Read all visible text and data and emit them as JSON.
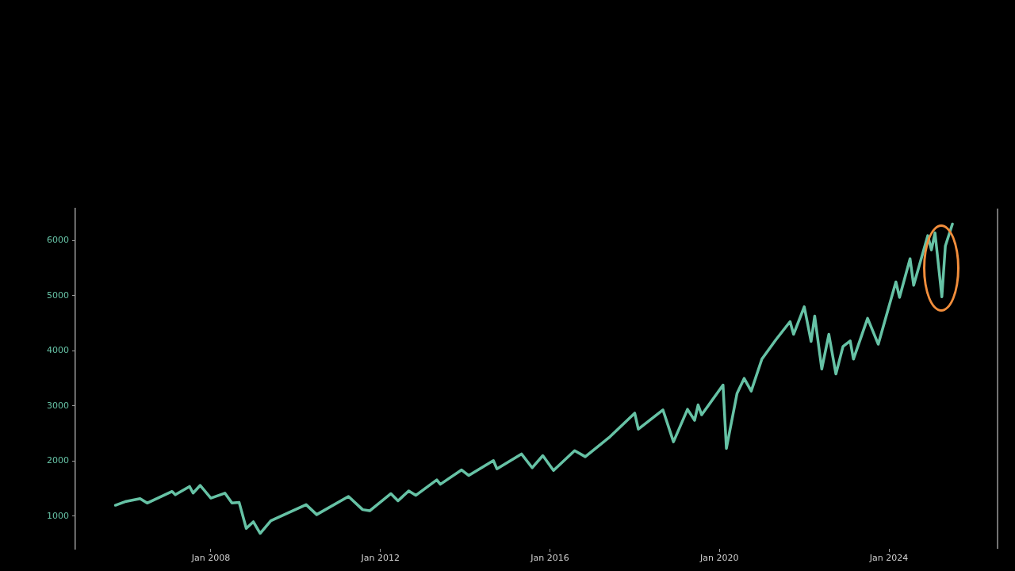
{
  "chart_data": {
    "type": "line",
    "x": [
      "2005-10",
      "2006-01",
      "2006-05",
      "2006-07",
      "2007-02",
      "2007-03",
      "2007-07",
      "2007-08",
      "2007-10",
      "2008-01",
      "2008-05",
      "2008-07",
      "2008-09",
      "2008-11",
      "2009-01",
      "2009-03",
      "2009-06",
      "2010-04",
      "2010-07",
      "2011-04",
      "2011-08",
      "2011-10",
      "2012-04",
      "2012-06",
      "2012-09",
      "2012-11",
      "2013-05",
      "2013-06",
      "2013-12",
      "2014-02",
      "2014-09",
      "2014-10",
      "2015-05",
      "2015-08",
      "2015-11",
      "2016-02",
      "2016-08",
      "2016-11",
      "2017-06",
      "2018-01",
      "2018-02",
      "2018-09",
      "2018-12",
      "2019-04",
      "2019-06",
      "2019-07",
      "2019-08",
      "2020-02",
      "2020-03",
      "2020-06",
      "2020-08",
      "2020-10",
      "2021-01",
      "2021-05",
      "2021-09",
      "2021-10",
      "2022-01",
      "2022-03",
      "2022-04",
      "2022-06",
      "2022-08",
      "2022-10",
      "2022-12",
      "2023-02",
      "2023-03",
      "2023-07",
      "2023-10",
      "2024-03",
      "2024-04",
      "2024-07",
      "2024-08",
      "2024-12",
      "2025-01",
      "2025-02",
      "2025-04",
      "2025-05",
      "2025-07"
    ],
    "series": [
      {
        "color": "#66c2a5",
        "values": [
          1200,
          1270,
          1320,
          1240,
          1450,
          1390,
          1540,
          1420,
          1560,
          1330,
          1420,
          1240,
          1250,
          780,
          900,
          690,
          920,
          1210,
          1030,
          1360,
          1120,
          1100,
          1410,
          1280,
          1460,
          1380,
          1660,
          1580,
          1840,
          1740,
          2010,
          1860,
          2130,
          1880,
          2100,
          1830,
          2190,
          2080,
          2440,
          2870,
          2580,
          2930,
          2350,
          2940,
          2740,
          3020,
          2840,
          3380,
          2230,
          3230,
          3500,
          3270,
          3850,
          4200,
          4530,
          4300,
          4800,
          4170,
          4630,
          3670,
          4300,
          3580,
          4080,
          4180,
          3850,
          4590,
          4120,
          5250,
          4970,
          5670,
          5190,
          6090,
          5830,
          6140,
          4980,
          5900,
          6300
        ]
      }
    ],
    "xlim": [
      "2004-10-20",
      "2026-07-25"
    ],
    "xticks": [
      {
        "value": "2008-01-01",
        "label": "Jan 2008"
      },
      {
        "value": "2012-01-01",
        "label": "Jan 2012"
      },
      {
        "value": "2016-01-01",
        "label": "Jan 2016"
      },
      {
        "value": "2020-01-01",
        "label": "Jan 2020"
      },
      {
        "value": "2024-01-01",
        "label": "Jan 2024"
      }
    ],
    "ylim": [
      410,
      6580
    ],
    "yticks": [
      1000,
      2000,
      3000,
      4000,
      5000,
      6000
    ],
    "grid": false,
    "legend": false,
    "marker": "none",
    "line_style": "solid"
  }
}
